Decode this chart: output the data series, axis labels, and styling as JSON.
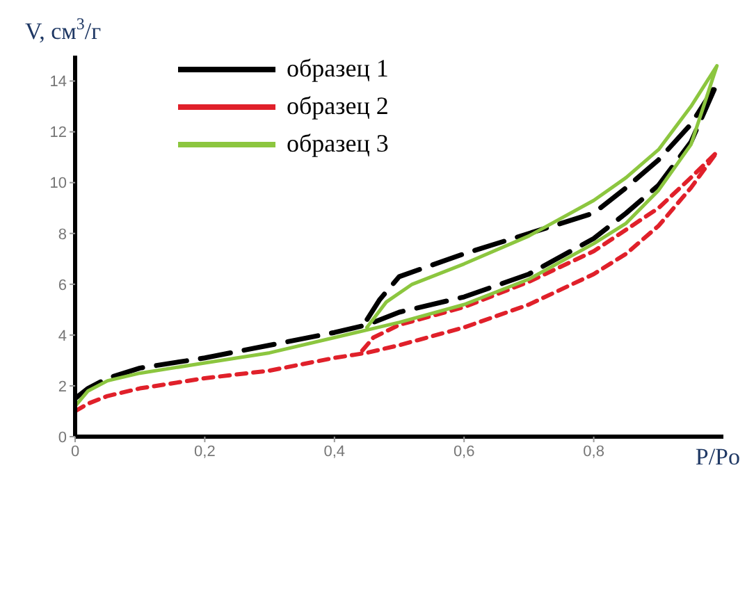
{
  "chart_data": {
    "type": "line",
    "xlabel": "P/Po",
    "ylabel": "V, см$^{3}$/г",
    "xlim": [
      0,
      1
    ],
    "ylim": [
      0,
      15
    ],
    "xticks": [
      0,
      {
        "value": 0.2,
        "label": "0,2"
      },
      {
        "value": 0.4,
        "label": "0,4"
      },
      {
        "value": 0.6,
        "label": "0,6"
      },
      {
        "value": 0.8,
        "label": "0,8"
      }
    ],
    "yticks": [
      0,
      2,
      4,
      6,
      8,
      10,
      12,
      14
    ],
    "grid": false,
    "legend": "top left",
    "marker": "none",
    "series": [
      {
        "name": "образец 1",
        "color": "#000000",
        "line_style": "dashed",
        "x": [
          0,
          0.02,
          0.05,
          0.1,
          0.2,
          0.3,
          0.4,
          0.45,
          0.5,
          0.6,
          0.7,
          0.8,
          0.85,
          0.9,
          0.95,
          0.99,
          0.95,
          0.9,
          0.85,
          0.8,
          0.7,
          0.6,
          0.5,
          0.47,
          0.45
        ],
        "values": [
          1.5,
          1.9,
          2.3,
          2.7,
          3.1,
          3.6,
          4.1,
          4.4,
          4.9,
          5.5,
          6.4,
          7.8,
          8.8,
          9.9,
          11.6,
          13.9,
          12.3,
          10.9,
          9.8,
          8.8,
          8.0,
          7.2,
          6.3,
          5.4,
          4.6
        ]
      },
      {
        "name": "образец 2",
        "color": "#e0202a",
        "line_style": "dotted",
        "x": [
          0,
          0.02,
          0.05,
          0.1,
          0.2,
          0.3,
          0.4,
          0.45,
          0.5,
          0.6,
          0.7,
          0.8,
          0.85,
          0.9,
          0.95,
          0.99,
          0.95,
          0.9,
          0.8,
          0.7,
          0.6,
          0.5,
          0.46,
          0.44
        ],
        "values": [
          1.0,
          1.3,
          1.6,
          1.9,
          2.3,
          2.6,
          3.1,
          3.3,
          3.6,
          4.3,
          5.2,
          6.4,
          7.2,
          8.3,
          9.8,
          11.2,
          10.2,
          9.0,
          7.3,
          6.1,
          5.1,
          4.4,
          3.9,
          3.3
        ]
      },
      {
        "name": "образец 3",
        "color": "#8cc63f",
        "line_style": "solid",
        "x": [
          0,
          0.02,
          0.05,
          0.1,
          0.2,
          0.3,
          0.4,
          0.45,
          0.5,
          0.6,
          0.7,
          0.8,
          0.85,
          0.9,
          0.95,
          0.99,
          0.95,
          0.9,
          0.85,
          0.8,
          0.7,
          0.6,
          0.52,
          0.48,
          0.45
        ],
        "values": [
          1.2,
          1.8,
          2.2,
          2.5,
          2.9,
          3.3,
          3.9,
          4.2,
          4.5,
          5.2,
          6.2,
          7.6,
          8.4,
          9.7,
          11.5,
          14.6,
          13.0,
          11.3,
          10.2,
          9.3,
          7.9,
          6.8,
          6.0,
          5.3,
          4.3
        ]
      }
    ]
  }
}
